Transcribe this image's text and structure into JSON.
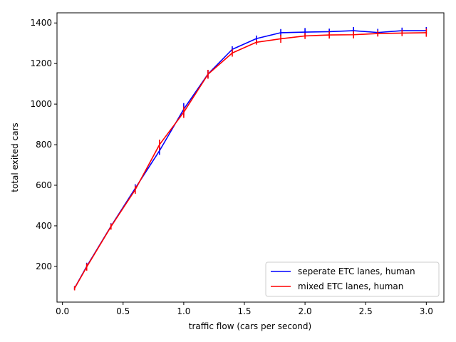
{
  "chart_data": {
    "type": "line",
    "title": "",
    "xlabel": "traffic flow (cars per second)",
    "ylabel": "total exited cars",
    "xlim": [
      -0.045,
      3.145
    ],
    "ylim": [
      24,
      1450
    ],
    "xticks": [
      0.0,
      0.5,
      1.0,
      1.5,
      2.0,
      2.5,
      3.0
    ],
    "xtick_labels": [
      "0.0",
      "0.5",
      "1.0",
      "1.5",
      "2.0",
      "2.5",
      "3.0"
    ],
    "yticks": [
      200,
      400,
      600,
      800,
      1000,
      1200,
      1400
    ],
    "ytick_labels": [
      "200",
      "400",
      "600",
      "800",
      "1000",
      "1200",
      "1400"
    ],
    "grid": false,
    "legend_position": "lower-right",
    "x": [
      0.1,
      0.2,
      0.4,
      0.6,
      0.8,
      1.0,
      1.2,
      1.4,
      1.6,
      1.8,
      2.0,
      2.2,
      2.4,
      2.6,
      2.8,
      3.0
    ],
    "series": [
      {
        "name": "seperate ETC lanes, human",
        "color": "#0000ff",
        "values": [
          93,
          200,
          398,
          585,
          770,
          975,
          1148,
          1270,
          1323,
          1352,
          1355,
          1357,
          1362,
          1353,
          1362,
          1362
        ],
        "errors": [
          10,
          18,
          15,
          20,
          20,
          30,
          20,
          15,
          15,
          18,
          20,
          15,
          18,
          18,
          15,
          18
        ]
      },
      {
        "name": "mixed ETC lanes, human",
        "color": "#ff0000",
        "values": [
          92,
          197,
          396,
          578,
          800,
          960,
          1147,
          1252,
          1305,
          1322,
          1336,
          1341,
          1342,
          1348,
          1350,
          1352
        ],
        "errors": [
          10,
          18,
          15,
          20,
          25,
          28,
          22,
          18,
          12,
          20,
          15,
          18,
          18,
          15,
          15,
          20
        ]
      }
    ]
  }
}
